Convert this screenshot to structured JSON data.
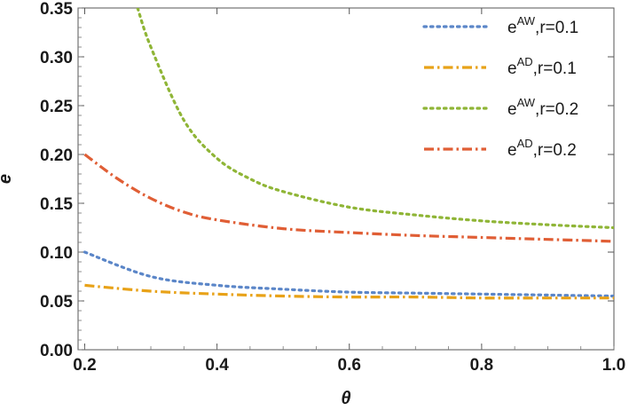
{
  "chart_data": {
    "type": "line",
    "xlabel": "θ",
    "ylabel": "e",
    "xlim": [
      0.19,
      1.0
    ],
    "ylim": [
      0.0,
      0.35
    ],
    "x_ticks": [
      0.2,
      0.4,
      0.6,
      0.8,
      1.0
    ],
    "x_tick_labels": [
      "0.2",
      "0.4",
      "0.6",
      "0.8",
      "1.0"
    ],
    "y_ticks": [
      0.0,
      0.05,
      0.1,
      0.15,
      0.2,
      0.25,
      0.3,
      0.35
    ],
    "y_tick_labels": [
      "0.00",
      "0.05",
      "0.10",
      "0.15",
      "0.20",
      "0.25",
      "0.30",
      "0.35"
    ],
    "grid": false,
    "legend_position": "top-right",
    "series": [
      {
        "label_base": "e",
        "label_sup": "AW",
        "label_tail": ",r=0.1",
        "color": "#5b86c8",
        "style": "dotted",
        "x": [
          0.2,
          0.3,
          0.4,
          0.5,
          0.6,
          0.7,
          0.8,
          0.9,
          1.0
        ],
        "y": [
          0.1,
          0.075,
          0.066,
          0.062,
          0.059,
          0.058,
          0.057,
          0.056,
          0.055
        ]
      },
      {
        "label_base": "e",
        "label_sup": "AD",
        "label_tail": ",r=0.1",
        "color": "#e8a218",
        "style": "dashdot",
        "x": [
          0.2,
          0.3,
          0.4,
          0.5,
          0.6,
          0.7,
          0.8,
          0.9,
          1.0
        ],
        "y": [
          0.066,
          0.06,
          0.057,
          0.055,
          0.054,
          0.054,
          0.053,
          0.053,
          0.053
        ]
      },
      {
        "label_base": "e",
        "label_sup": "AW",
        "label_tail": ",r=0.2",
        "color": "#8fb536",
        "style": "dotted",
        "x": [
          0.28,
          0.3,
          0.35,
          0.4,
          0.45,
          0.5,
          0.6,
          0.7,
          0.8,
          0.9,
          1.0
        ],
        "y": [
          0.35,
          0.31,
          0.235,
          0.196,
          0.175,
          0.162,
          0.146,
          0.138,
          0.132,
          0.128,
          0.125
        ]
      },
      {
        "label_base": "e",
        "label_sup": "AD",
        "label_tail": ",r=0.2",
        "color": "#e05e35",
        "style": "dashdot",
        "x": [
          0.2,
          0.25,
          0.3,
          0.35,
          0.4,
          0.5,
          0.6,
          0.7,
          0.8,
          0.9,
          1.0
        ],
        "y": [
          0.2,
          0.175,
          0.155,
          0.141,
          0.133,
          0.124,
          0.12,
          0.117,
          0.115,
          0.113,
          0.111
        ]
      }
    ]
  }
}
